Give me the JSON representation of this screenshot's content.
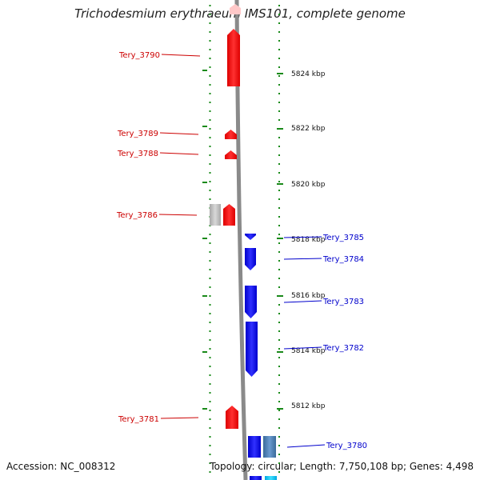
{
  "title": "Trichodesmium erythraeum IMS101, complete genome",
  "footer": {
    "accession": "Accession: NC_008312",
    "topology": "Topology: circular; Length: 7,750,108 bp; Genes: 4,498"
  },
  "colors": {
    "forward_gene": "#ff0000",
    "reverse_gene": "#0000ff",
    "forward_label": "#cc0000",
    "reverse_label": "#0000cc",
    "tick": "#1a8a1a",
    "grey_feature": "#bdbdbd",
    "steelblue_feature": "#4a7fb5",
    "cyan_feature": "#00c8ff"
  },
  "kbp_labels": [
    "5824 kbp",
    "5822 kbp",
    "5820 kbp",
    "5818 kbp",
    "5816 kbp",
    "5814 kbp",
    "5812 kbp"
  ],
  "forward_genes": [
    "Tery_3790",
    "Tery_3789",
    "Tery_3788",
    "Tery_3786",
    "Tery_3781"
  ],
  "reverse_genes": [
    "Tery_3785",
    "Tery_3784",
    "Tery_3783",
    "Tery_3782",
    "Tery_3780"
  ]
}
